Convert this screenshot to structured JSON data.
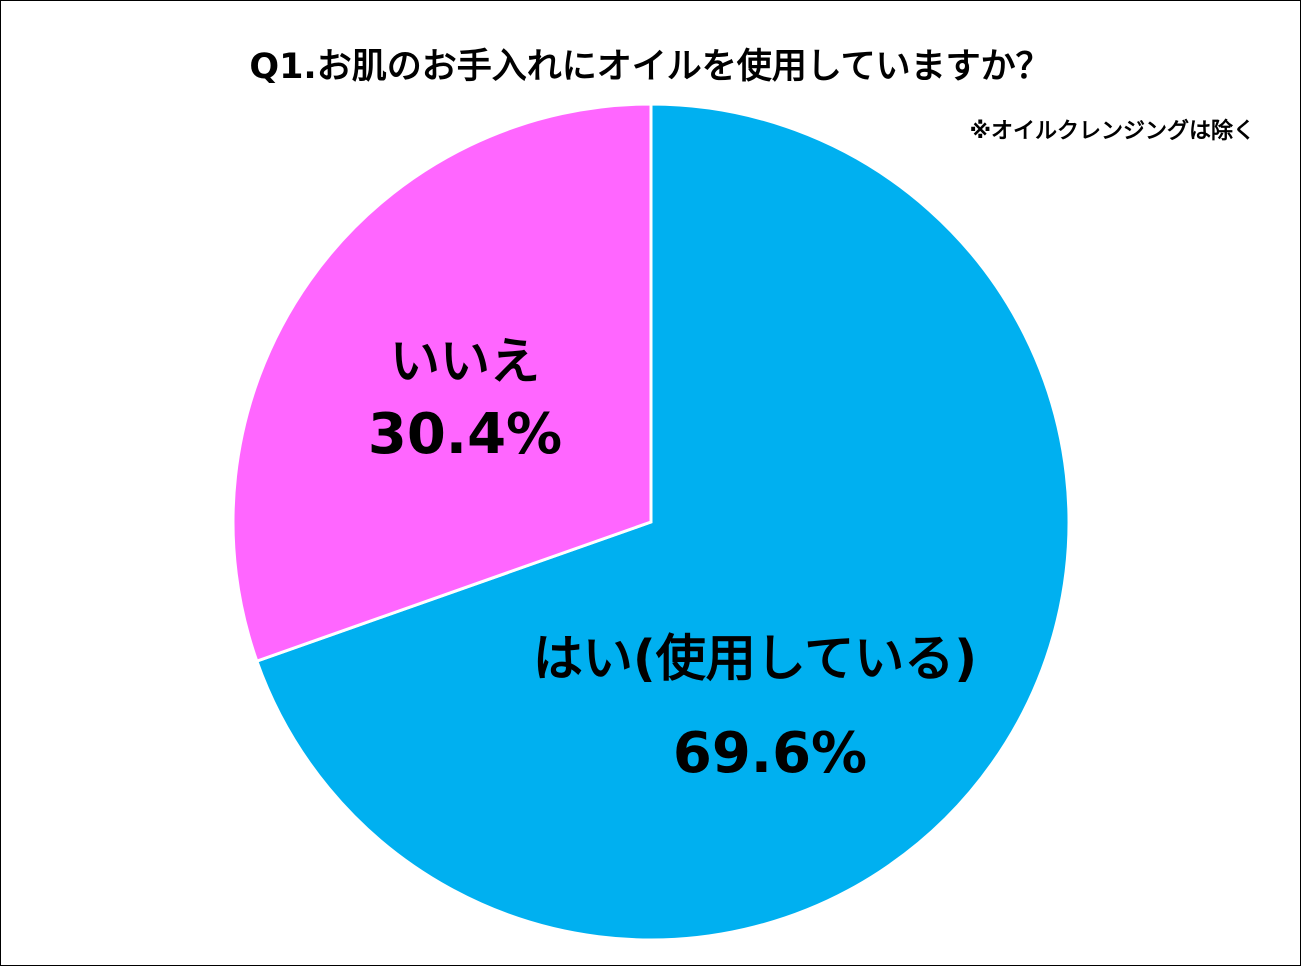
{
  "chart_data": {
    "type": "pie",
    "title": "Q1.お肌のお手入れにオイルを使用していますか？",
    "note": "※オイルクレンジングは除く",
    "categories": [
      "はい(使用している)",
      "いいえ"
    ],
    "values": [
      69.6,
      30.4
    ],
    "value_labels": [
      "69.6%",
      "30.4%"
    ],
    "colors": [
      "#00b0f0",
      "#ff66ff"
    ]
  }
}
